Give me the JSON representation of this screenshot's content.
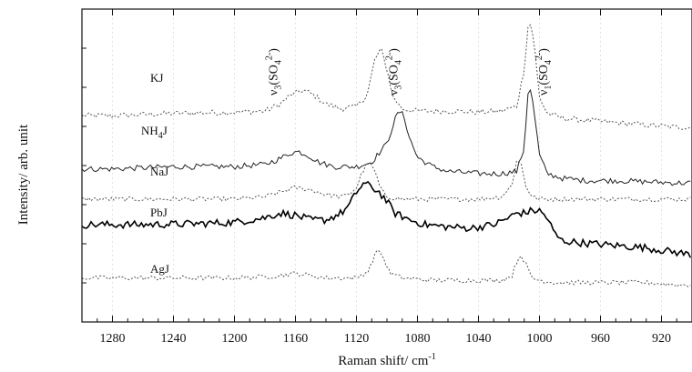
{
  "chart_data": {
    "type": "line",
    "title": "",
    "xlabel": "Raman shift/ cm",
    "xlabel_sup": "-1",
    "ylabel": "Intensity/ arb. unit",
    "xlim": [
      1300,
      900
    ],
    "x_reversed": true,
    "xticks": [
      1280,
      1240,
      1200,
      1160,
      1120,
      1080,
      1040,
      1000,
      960,
      920
    ],
    "yticks_labeled": false,
    "grid": true,
    "legend": "none",
    "annotations": [
      {
        "mode": "ν",
        "sub": "3",
        "species": "SO",
        "species_sub": "4",
        "charge": "2-",
        "x": 1172
      },
      {
        "mode": "ν",
        "sub": "3",
        "species": "SO",
        "species_sub": "4",
        "charge": "2-",
        "x": 1093
      },
      {
        "mode": "ν",
        "sub": "1",
        "species": "SO",
        "species_sub": "4",
        "charge": "2-",
        "x": 995
      }
    ],
    "series": [
      {
        "name": "KJ",
        "name_parts": [
          "KJ"
        ],
        "color": "#555555",
        "dash": "2 2",
        "width": 1.0,
        "noise": 0.012,
        "x": [
          1300,
          1280,
          1260,
          1240,
          1200,
          1180,
          1170,
          1163,
          1155,
          1148,
          1140,
          1130,
          1120,
          1113,
          1108,
          1104,
          1100,
          1096,
          1090,
          1080,
          1060,
          1040,
          1025,
          1015,
          1010,
          1007,
          1004,
          1000,
          995,
          985,
          970,
          950,
          930,
          910,
          900
        ],
        "y": [
          0.54,
          0.54,
          0.545,
          0.55,
          0.555,
          0.56,
          0.59,
          0.63,
          0.65,
          0.63,
          0.59,
          0.57,
          0.58,
          0.63,
          0.78,
          0.83,
          0.74,
          0.62,
          0.57,
          0.56,
          0.56,
          0.555,
          0.56,
          0.58,
          0.74,
          0.96,
          0.88,
          0.62,
          0.55,
          0.53,
          0.52,
          0.51,
          0.5,
          0.49,
          0.49
        ]
      },
      {
        "name": "NH4J",
        "name_parts": [
          "NH",
          "4",
          "J"
        ],
        "color": "#222222",
        "dash": "",
        "width": 1.0,
        "noise": 0.012,
        "x": [
          1300,
          1280,
          1260,
          1240,
          1200,
          1180,
          1170,
          1163,
          1158,
          1152,
          1145,
          1135,
          1120,
          1110,
          1100,
          1095,
          1092,
          1089,
          1085,
          1080,
          1070,
          1060,
          1040,
          1025,
          1015,
          1010,
          1007,
          1004,
          1000,
          995,
          985,
          970,
          950,
          930,
          910,
          900
        ],
        "y": [
          0.31,
          0.31,
          0.315,
          0.32,
          0.32,
          0.33,
          0.355,
          0.38,
          0.385,
          0.37,
          0.34,
          0.32,
          0.32,
          0.34,
          0.42,
          0.52,
          0.56,
          0.54,
          0.44,
          0.36,
          0.32,
          0.3,
          0.29,
          0.29,
          0.3,
          0.4,
          0.69,
          0.58,
          0.37,
          0.29,
          0.27,
          0.26,
          0.26,
          0.255,
          0.25,
          0.25
        ]
      },
      {
        "name": "NaJ",
        "name_parts": [
          "NaJ"
        ],
        "color": "#555555",
        "dash": "2 2",
        "width": 1.0,
        "noise": 0.01,
        "x": [
          1300,
          1280,
          1260,
          1240,
          1200,
          1180,
          1170,
          1160,
          1150,
          1140,
          1130,
          1125,
          1120,
          1116,
          1112,
          1108,
          1104,
          1100,
          1090,
          1070,
          1040,
          1025,
          1018,
          1015,
          1012,
          1009,
          1005,
          1000,
          990,
          970,
          950,
          930,
          910,
          900
        ],
        "y": [
          0.18,
          0.18,
          0.18,
          0.18,
          0.18,
          0.19,
          0.21,
          0.23,
          0.22,
          0.2,
          0.19,
          0.2,
          0.23,
          0.3,
          0.34,
          0.3,
          0.22,
          0.19,
          0.18,
          0.18,
          0.18,
          0.19,
          0.24,
          0.35,
          0.33,
          0.24,
          0.19,
          0.18,
          0.18,
          0.18,
          0.18,
          0.18,
          0.18,
          0.18
        ]
      },
      {
        "name": "PbJ",
        "name_parts": [
          "PbJ"
        ],
        "color": "#000000",
        "dash": "",
        "width": 1.6,
        "noise": 0.016,
        "x": [
          1300,
          1280,
          1260,
          1240,
          1220,
          1200,
          1190,
          1180,
          1170,
          1160,
          1150,
          1140,
          1130,
          1125,
          1120,
          1115,
          1110,
          1105,
          1100,
          1095,
          1085,
          1075,
          1060,
          1045,
          1030,
          1020,
          1015,
          1010,
          1005,
          1000,
          995,
          990,
          985,
          970,
          950,
          930,
          910,
          900
        ],
        "y": [
          0.07,
          0.07,
          0.07,
          0.072,
          0.075,
          0.08,
          0.09,
          0.1,
          0.12,
          0.11,
          0.09,
          0.09,
          0.12,
          0.15,
          0.21,
          0.25,
          0.23,
          0.21,
          0.17,
          0.12,
          0.09,
          0.07,
          0.06,
          0.055,
          0.07,
          0.1,
          0.12,
          0.12,
          0.13,
          0.13,
          0.1,
          0.03,
          0.0,
          -0.01,
          -0.02,
          -0.03,
          -0.05,
          -0.06
        ]
      },
      {
        "name": "AgJ",
        "name_parts": [
          "AgJ"
        ],
        "color": "#555555",
        "dash": "2 2",
        "width": 1.0,
        "noise": 0.01,
        "x": [
          1300,
          1280,
          1260,
          1240,
          1200,
          1180,
          1170,
          1160,
          1150,
          1140,
          1120,
          1112,
          1108,
          1105,
          1102,
          1098,
          1090,
          1070,
          1040,
          1025,
          1018,
          1015,
          1012,
          1009,
          1005,
          1000,
          990,
          970,
          950,
          930,
          910,
          900
        ],
        "y": [
          -0.16,
          -0.16,
          -0.16,
          -0.16,
          -0.16,
          -0.155,
          -0.15,
          -0.14,
          -0.15,
          -0.16,
          -0.16,
          -0.13,
          -0.06,
          -0.04,
          -0.08,
          -0.14,
          -0.16,
          -0.17,
          -0.17,
          -0.17,
          -0.15,
          -0.09,
          -0.06,
          -0.1,
          -0.16,
          -0.17,
          -0.18,
          -0.18,
          -0.18,
          -0.18,
          -0.19,
          -0.19
        ]
      }
    ]
  }
}
